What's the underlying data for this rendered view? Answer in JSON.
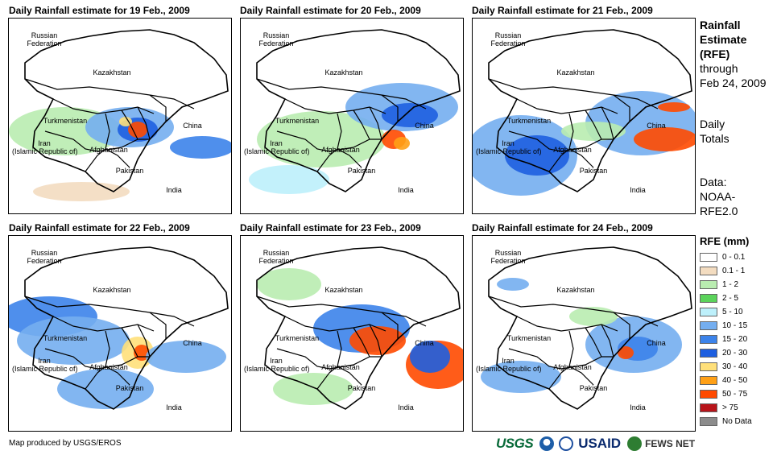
{
  "panels": [
    {
      "title": "Daily Rainfall estimate for 19 Feb., 2009"
    },
    {
      "title": "Daily Rainfall estimate for 20 Feb., 2009"
    },
    {
      "title": "Daily Rainfall estimate for 21 Feb., 2009"
    },
    {
      "title": "Daily Rainfall estimate for 22 Feb., 2009"
    },
    {
      "title": "Daily Rainfall estimate for 23 Feb., 2009"
    },
    {
      "title": "Daily Rainfall estimate for 24 Feb., 2009"
    }
  ],
  "map_labels": {
    "russia": "Russian\nFederation",
    "kazakhstan": "Kazakhstan",
    "turkmenistan": "Turkmenistan",
    "iran": "Iran\n(Islamic Republic of)",
    "afghanistan": "Afghanistan",
    "pakistan": "Pakistan",
    "india": "India",
    "china": "China"
  },
  "sidebar": {
    "title_line1": "Rainfall",
    "title_line2": "Estimate",
    "title_line3": "(RFE)",
    "through": "through",
    "date": "Feb 24, 2009",
    "totals1": "Daily",
    "totals2": "Totals",
    "data1": "Data:",
    "data2": "NOAA-",
    "data3": "RFE2.0"
  },
  "legend": {
    "title": "RFE (mm)",
    "items": [
      {
        "label": "0 - 0.1",
        "color": "#ffffff"
      },
      {
        "label": "0.1 - 1",
        "color": "#f3dcc0"
      },
      {
        "label": "1 - 2",
        "color": "#b9ecb0"
      },
      {
        "label": "2 - 5",
        "color": "#5bd35b"
      },
      {
        "label": "5 - 10",
        "color": "#bdf0fb"
      },
      {
        "label": "10 - 15",
        "color": "#74aef0"
      },
      {
        "label": "15 - 20",
        "color": "#3c83ea"
      },
      {
        "label": "20 - 30",
        "color": "#1e5fe0"
      },
      {
        "label": "30 - 40",
        "color": "#ffe07a"
      },
      {
        "label": "40 - 50",
        "color": "#ffa016"
      },
      {
        "label": "50 - 75",
        "color": "#ff4a00"
      },
      {
        "label": "> 75",
        "color": "#b8141a"
      },
      {
        "label": "No Data",
        "color": "#8c8c8c"
      }
    ]
  },
  "footer": {
    "credit": "Map produced by USGS/EROS"
  },
  "logos": {
    "usgs": "USGS",
    "usaid": "USAID",
    "fews": "FEWS NET"
  }
}
